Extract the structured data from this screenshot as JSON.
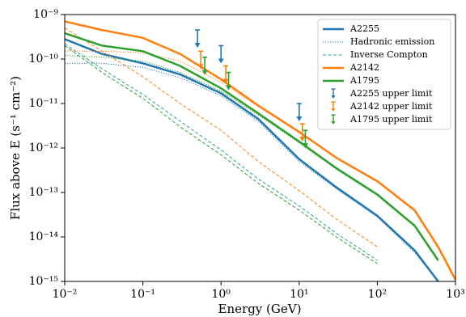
{
  "chart_data": {
    "type": "line",
    "xlabel": "Energy (GeV)",
    "ylabel": "Flux above E (s⁻¹ cm⁻²)",
    "xlog": true,
    "ylog": true,
    "xlim": [
      0.01,
      1000
    ],
    "ylim": [
      1e-15,
      1e-09
    ],
    "xticks": [
      {
        "value": 0.01,
        "label": "10⁻²"
      },
      {
        "value": 0.1,
        "label": "10⁻¹"
      },
      {
        "value": 1,
        "label": "10⁰"
      },
      {
        "value": 10,
        "label": "10¹"
      },
      {
        "value": 100,
        "label": "10²"
      },
      {
        "value": 1000,
        "label": "10³"
      }
    ],
    "yticks": [
      {
        "value": 1e-15,
        "label": "10⁻¹⁵"
      },
      {
        "value": 1e-14,
        "label": "10⁻¹⁴"
      },
      {
        "value": 1e-13,
        "label": "10⁻¹³"
      },
      {
        "value": 1e-12,
        "label": "10⁻¹²"
      },
      {
        "value": 1e-11,
        "label": "10⁻¹¹"
      },
      {
        "value": 1e-10,
        "label": "10⁻¹⁰"
      },
      {
        "value": 1e-09,
        "label": "10⁻⁹"
      }
    ],
    "legend": "upper right",
    "x": [
      0.01,
      0.03,
      0.1,
      0.3,
      1,
      3,
      10,
      30,
      100,
      300,
      600,
      1000
    ],
    "series": [
      {
        "name": "A2255",
        "color": "#1f77b4",
        "style": "solid",
        "width": 2.5,
        "values": [
          2.8e-10,
          1.3e-10,
          8e-11,
          4.5e-11,
          1.7e-11,
          4.5e-12,
          5.6e-13,
          1.3e-13,
          3e-14,
          5e-15,
          1e-15,
          null
        ]
      },
      {
        "name": "Hadronic emission",
        "color": "#1f77b4",
        "style": "dotted",
        "width": 1,
        "values": [
          8e-11,
          8e-11,
          6.5e-11,
          3.8e-11,
          1.5e-11,
          4e-12,
          5e-13,
          1.2e-13,
          2.8e-14,
          4.5e-15,
          1e-15,
          null
        ]
      },
      {
        "name": "Inverse Compton",
        "color": "#2a9d9d",
        "style": "dashed",
        "width": 1,
        "values": [
          2.2e-10,
          6e-11,
          1.6e-11,
          4e-12,
          9e-13,
          2e-13,
          5e-14,
          1.2e-14,
          3e-15,
          null,
          null,
          null
        ]
      },
      {
        "name": "A2142",
        "color": "#ff7f0e",
        "style": "solid",
        "width": 2.5,
        "values": [
          7e-10,
          4.5e-10,
          3e-10,
          1.3e-10,
          3.5e-11,
          9e-12,
          2.3e-12,
          6e-13,
          1.8e-13,
          4e-14,
          6e-15,
          1.1e-15
        ]
      },
      {
        "color": "#ff7f0e",
        "style": "dotted",
        "width": 1,
        "values": [
          1.5e-10,
          1.5e-10,
          1.4e-10,
          9e-11,
          3e-11,
          8.5e-12,
          2.2e-12,
          5.8e-13,
          1.7e-13,
          3.8e-14,
          5.5e-15,
          1e-15
        ]
      },
      {
        "color": "#ff7f0e",
        "style": "dashed",
        "width": 1,
        "values": [
          5e-10,
          1.5e-10,
          4e-11,
          1e-11,
          2.5e-12,
          5e-13,
          1.1e-13,
          2.5e-14,
          6e-15,
          null,
          null,
          null
        ]
      },
      {
        "name": "A1795",
        "color": "#2ca02c",
        "style": "solid",
        "width": 2.5,
        "values": [
          3.8e-10,
          2e-10,
          1.5e-10,
          7e-11,
          2.2e-11,
          6e-12,
          1.4e-12,
          3.5e-13,
          9e-14,
          1.8e-14,
          3e-15,
          null
        ]
      },
      {
        "color": "#2ca02c",
        "style": "dotted",
        "width": 1,
        "values": [
          1.2e-10,
          1.1e-10,
          9e-11,
          5e-11,
          1.9e-11,
          5.5e-12,
          1.3e-12,
          3.3e-13,
          8.5e-14,
          1.7e-14,
          2.8e-15,
          null
        ]
      },
      {
        "color": "#2ca02c",
        "style": "dashed",
        "width": 1,
        "values": [
          2e-10,
          5e-11,
          1.3e-11,
          3e-12,
          7e-13,
          1.6e-13,
          4e-14,
          1e-14,
          2.5e-15,
          null,
          null,
          null
        ]
      }
    ],
    "upper_limits": [
      {
        "name": "A2255 upper limit",
        "color": "#1f77b4",
        "x": [
          0.5,
          1.0,
          10
        ],
        "values": [
          4.5e-10,
          2e-10,
          1e-11
        ]
      },
      {
        "name": "A2142 upper limit",
        "color": "#ff7f0e",
        "x": [
          0.55,
          1.15,
          11
        ],
        "values": [
          1.5e-10,
          7e-11,
          3.5e-12
        ]
      },
      {
        "name": "A1795 upper limit",
        "color": "#2ca02c",
        "x": [
          0.62,
          1.25,
          12
        ],
        "values": [
          1.1e-10,
          5e-11,
          2.5e-12
        ]
      }
    ]
  }
}
